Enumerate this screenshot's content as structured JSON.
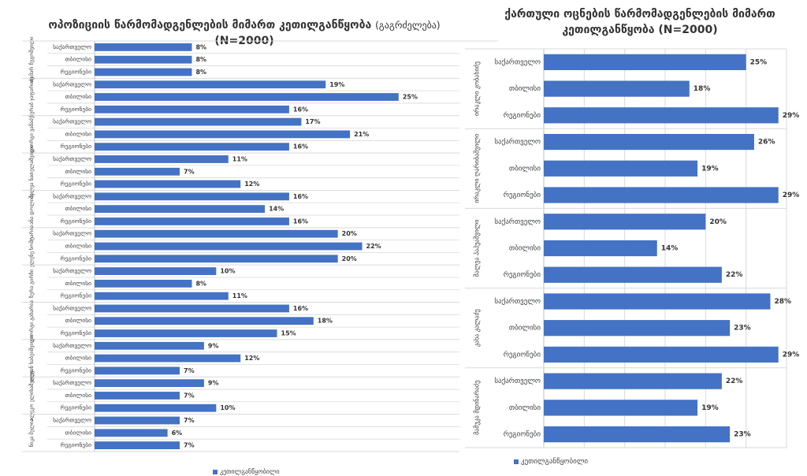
{
  "colors": {
    "bar": "#4472C4",
    "grid": "#D9D9D9",
    "text": "#404040"
  },
  "left": {
    "title": "ოპოზიციის წარმომადგენლების მიმართ კეთილგანწყობა",
    "title_suffix": "(გაგრძელება)",
    "subtitle": "(N=2000)",
    "legend": "კეთილგანწყობილი",
    "chart_data": {
      "type": "bar",
      "orientation": "horizontal",
      "xlim": [
        0,
        30
      ],
      "groups": [
        {
          "label": "თამარ ჩუგოშვილი",
          "items": [
            {
              "category": "საქართველო",
              "value": 8,
              "label": "8%"
            },
            {
              "category": "თბილისი",
              "value": 8,
              "label": "8%"
            },
            {
              "category": "რეგიონები",
              "value": 8,
              "label": "8%"
            }
          ]
        },
        {
          "label": "ზურაბ ჯაფარიძე",
          "items": [
            {
              "category": "საქართველო",
              "value": 19,
              "label": "19%"
            },
            {
              "category": "თბილისი",
              "value": 25,
              "label": "25%"
            },
            {
              "category": "რეგიონები",
              "value": 16,
              "label": "16%"
            }
          ]
        },
        {
          "label": "გიორგი ვაშაძე",
          "items": [
            {
              "category": "საქართველო",
              "value": 17,
              "label": "17%"
            },
            {
              "category": "თბილისი",
              "value": 21,
              "label": "21%"
            },
            {
              "category": "რეგიონები",
              "value": 16,
              "label": "16%"
            }
          ]
        },
        {
          "label": "შალვა ნათელაშვილი",
          "items": [
            {
              "category": "საქართველო",
              "value": 11,
              "label": "11%"
            },
            {
              "category": "თბილისი",
              "value": 7,
              "label": "7%"
            },
            {
              "category": "რეგიონები",
              "value": 12,
              "label": "12%"
            }
          ]
        },
        {
          "label": "ანა დოლიძე",
          "items": [
            {
              "category": "საქართველო",
              "value": 16,
              "label": "16%"
            },
            {
              "category": "თბილისი",
              "value": 14,
              "label": "14%"
            },
            {
              "category": "რეგიონები",
              "value": 16,
              "label": "16%"
            }
          ]
        },
        {
          "label": "ელენე ხოშტარია",
          "items": [
            {
              "category": "საქართველო",
              "value": 20,
              "label": "20%"
            },
            {
              "category": "თბილისი",
              "value": 22,
              "label": "22%"
            },
            {
              "category": "რეგიონები",
              "value": 20,
              "label": "20%"
            }
          ]
        },
        {
          "label": "ზურა გირჩი",
          "items": [
            {
              "category": "საქართველო",
              "value": 10,
              "label": "10%"
            },
            {
              "category": "თბილისი",
              "value": 8,
              "label": "8%"
            },
            {
              "category": "რეგიონები",
              "value": 11,
              "label": "11%"
            }
          ]
        },
        {
          "label": "გიორგი გახარია",
          "items": [
            {
              "category": "საქართველო",
              "value": 16,
              "label": "16%"
            },
            {
              "category": "თბილისი",
              "value": 18,
              "label": "18%"
            },
            {
              "category": "რეგიონები",
              "value": 15,
              "label": "15%"
            }
          ]
        },
        {
          "label": "ლევან ხაბეიშვილი",
          "items": [
            {
              "category": "საქართველო",
              "value": 9,
              "label": "9%"
            },
            {
              "category": "თბილისი",
              "value": 12,
              "label": "12%"
            },
            {
              "category": "რეგიონები",
              "value": 7,
              "label": "7%"
            }
          ]
        },
        {
          "label": "ალეკო ელისაშვილი",
          "items": [
            {
              "category": "საქართველო",
              "value": 9,
              "label": "9%"
            },
            {
              "category": "თბილისი",
              "value": 7,
              "label": "7%"
            },
            {
              "category": "რეგიონები",
              "value": 10,
              "label": "10%"
            }
          ]
        },
        {
          "label": "ნიკა მელია",
          "items": [
            {
              "category": "საქართველო",
              "value": 7,
              "label": "7%"
            },
            {
              "category": "თბილისი",
              "value": 6,
              "label": "6%"
            },
            {
              "category": "რეგიონები",
              "value": 7,
              "label": "7%"
            }
          ]
        }
      ]
    }
  },
  "right": {
    "title_line1": "ქართული ოცნების წარმომადგენლების მიმართ",
    "title_line2": "კეთილგანწყობა (N=2000)",
    "legend": "კეთილგანწყობილი",
    "chart_data": {
      "type": "bar",
      "orientation": "horizontal",
      "xlim": [
        0,
        30
      ],
      "groups": [
        {
          "label": "ირაკლი კობახიძე",
          "items": [
            {
              "category": "საქართველო",
              "value": 25,
              "label": "25%"
            },
            {
              "category": "თბილისი",
              "value": 18,
              "label": "18%"
            },
            {
              "category": "რეგიონები",
              "value": 29,
              "label": "29%"
            }
          ]
        },
        {
          "label": "ირაკლი ღარიბაშვილი",
          "items": [
            {
              "category": "საქართველო",
              "value": 26,
              "label": "26%"
            },
            {
              "category": "თბილისი",
              "value": 19,
              "label": "19%"
            },
            {
              "category": "რეგიონები",
              "value": 29,
              "label": "29%"
            }
          ]
        },
        {
          "label": "შალვა პაპუაშვილი",
          "items": [
            {
              "category": "საქართველო",
              "value": 20,
              "label": "20%"
            },
            {
              "category": "თბილისი",
              "value": 14,
              "label": "14%"
            },
            {
              "category": "რეგიონები",
              "value": 22,
              "label": "22%"
            }
          ]
        },
        {
          "label": "კახა კალაძე",
          "items": [
            {
              "category": "საქართველო",
              "value": 28,
              "label": "28%"
            },
            {
              "category": "თბილისი",
              "value": 23,
              "label": "23%"
            },
            {
              "category": "რეგიონები",
              "value": 29,
              "label": "29%"
            }
          ]
        },
        {
          "label": "მამუკა მდინარაძე",
          "items": [
            {
              "category": "საქართველო",
              "value": 22,
              "label": "22%"
            },
            {
              "category": "თბილისი",
              "value": 19,
              "label": "19%"
            },
            {
              "category": "რეგიონები",
              "value": 23,
              "label": "23%"
            }
          ]
        }
      ]
    }
  }
}
